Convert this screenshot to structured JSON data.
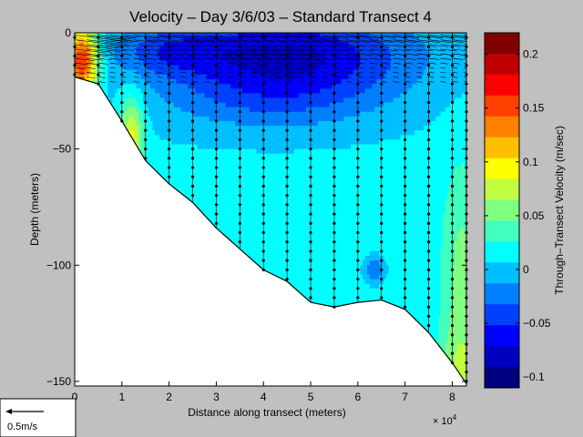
{
  "chart_data": {
    "type": "heatmap",
    "title": "Velocity – Day 3/6/03 – Standard Transect 4",
    "xlabel": "Distance along transect (meters)",
    "ylabel": "Depth (meters)",
    "x_exponent_label": "× 10",
    "x_exponent": "4",
    "xlim": [
      0,
      83000
    ],
    "ylim": [
      -152,
      0
    ],
    "x_ticks": [
      0,
      1,
      2,
      3,
      4,
      5,
      6,
      7,
      8
    ],
    "y_ticks": [
      0,
      -50,
      -100,
      -150
    ],
    "colorbar": {
      "label": "Through–Transect Velocity (m/sec)",
      "range": [
        -0.11,
        0.22
      ],
      "ticks": [
        "0.2",
        "0.15",
        "0.1",
        "0.05",
        "0",
        "−0.05",
        "−0.1"
      ],
      "tick_values": [
        0.2,
        0.15,
        0.1,
        0.05,
        0,
        -0.05,
        -0.1
      ],
      "colors": [
        "#800000",
        "#c00000",
        "#ff0000",
        "#ff4000",
        "#ff8000",
        "#ffbf00",
        "#ffff00",
        "#c0ff40",
        "#80ff80",
        "#40ffbf",
        "#00ffff",
        "#00bfff",
        "#0080ff",
        "#0040ff",
        "#0000ff",
        "#0000c0",
        "#000080"
      ]
    },
    "bottom_profile": [
      [
        0,
        -19
      ],
      [
        5000,
        -22
      ],
      [
        10000,
        -38
      ],
      [
        15000,
        -55
      ],
      [
        20000,
        -65
      ],
      [
        25000,
        -73
      ],
      [
        30000,
        -84
      ],
      [
        35000,
        -93
      ],
      [
        40000,
        -102
      ],
      [
        45000,
        -107
      ],
      [
        50000,
        -116
      ],
      [
        55000,
        -118
      ],
      [
        60000,
        -116
      ],
      [
        65000,
        -115
      ],
      [
        70000,
        -119
      ],
      [
        75000,
        -129
      ],
      [
        80000,
        -142
      ],
      [
        83000,
        -151
      ]
    ],
    "scale_arrow_label": "0.5m/s"
  }
}
